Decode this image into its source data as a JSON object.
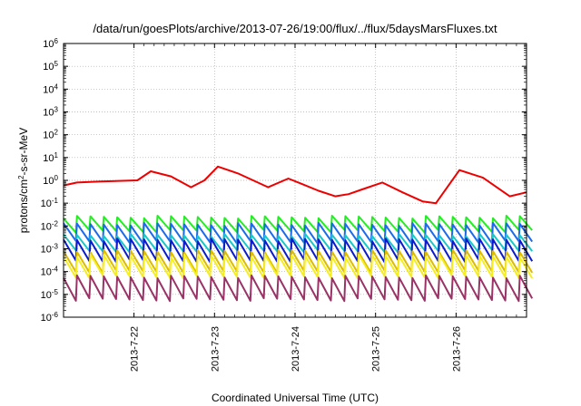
{
  "chart_data": {
    "type": "line",
    "title": "/data/run/goesPlots/archive/2013-07-26/19:00/flux/../flux/5daysMarsFluxes.txt",
    "xlabel": "Coordinated Universal Time (UTC)",
    "ylabel": {
      "base": "protons/cm",
      "sup": "2",
      "rest": "-s-sr-MeV"
    },
    "y_scale": "log",
    "ylim_exp": [
      -6,
      6
    ],
    "y_ticks": [
      {
        "exp": -6
      },
      {
        "exp": -5
      },
      {
        "exp": -4
      },
      {
        "exp": -3
      },
      {
        "exp": -2
      },
      {
        "exp": -1
      },
      {
        "exp": 0
      },
      {
        "exp": 1
      },
      {
        "exp": 2
      },
      {
        "exp": 3
      },
      {
        "exp": 4
      },
      {
        "exp": 5
      },
      {
        "exp": 6
      }
    ],
    "x_range_days": [
      "2013-07-21 03:00",
      "2013-07-26 21:00"
    ],
    "x_ticks": [
      "2013-7-22",
      "2013-7-23",
      "2013-7-24",
      "2013-7-25",
      "2013-7-26"
    ],
    "grid": true,
    "legend": "none",
    "series": [
      {
        "color": "#ee0000",
        "pattern": "smooth",
        "x": [
          "2013-07-21 03:00",
          "2013-07-21 07:00",
          "2013-07-21 14:00",
          "2013-07-22 01:00",
          "2013-07-22 05:00",
          "2013-07-22 11:00",
          "2013-07-22 17:00",
          "2013-07-22 21:00",
          "2013-07-23 01:00",
          "2013-07-23 07:00",
          "2013-07-23 16:00",
          "2013-07-23 22:00",
          "2013-07-24 02:00",
          "2013-07-24 07:00",
          "2013-07-24 12:00",
          "2013-07-24 16:00",
          "2013-07-24 20:00",
          "2013-07-25 02:00",
          "2013-07-25 08:00",
          "2013-07-25 14:00",
          "2013-07-25 18:00",
          "2013-07-26 01:00",
          "2013-07-26 08:00",
          "2013-07-26 16:00",
          "2013-07-26 21:00"
        ],
        "y": [
          0.6,
          0.8,
          0.9,
          1.0,
          2.5,
          1.5,
          0.5,
          1.0,
          4.0,
          2.0,
          0.5,
          1.2,
          0.7,
          0.35,
          0.2,
          0.25,
          0.4,
          0.8,
          0.3,
          0.12,
          0.1,
          2.8,
          1.3,
          0.2,
          0.3
        ]
      },
      {
        "color": "#22ee22",
        "pattern": "sawtooth",
        "range": [
          0.006,
          0.025
        ],
        "period_hours": 4
      },
      {
        "color": "#1a6aee",
        "pattern": "sawtooth",
        "range": [
          0.002,
          0.012
        ],
        "period_hours": 4
      },
      {
        "color": "#18c8c8",
        "pattern": "sawtooth",
        "range": [
          0.0008,
          0.004
        ],
        "period_hours": 4
      },
      {
        "color": "#0a1acc",
        "pattern": "sawtooth",
        "range": [
          0.0003,
          0.0025
        ],
        "period_hours": 4
      },
      {
        "color": "#ddbb00",
        "pattern": "sawtooth",
        "range": [
          0.0001,
          0.0008
        ],
        "period_hours": 4
      },
      {
        "color": "#f5ee20",
        "pattern": "sawtooth",
        "range": [
          6e-05,
          0.0005
        ],
        "period_hours": 4
      },
      {
        "color": "#993366",
        "pattern": "sawtooth",
        "range": [
          6e-06,
          6e-05
        ],
        "period_hours": 4
      }
    ]
  }
}
